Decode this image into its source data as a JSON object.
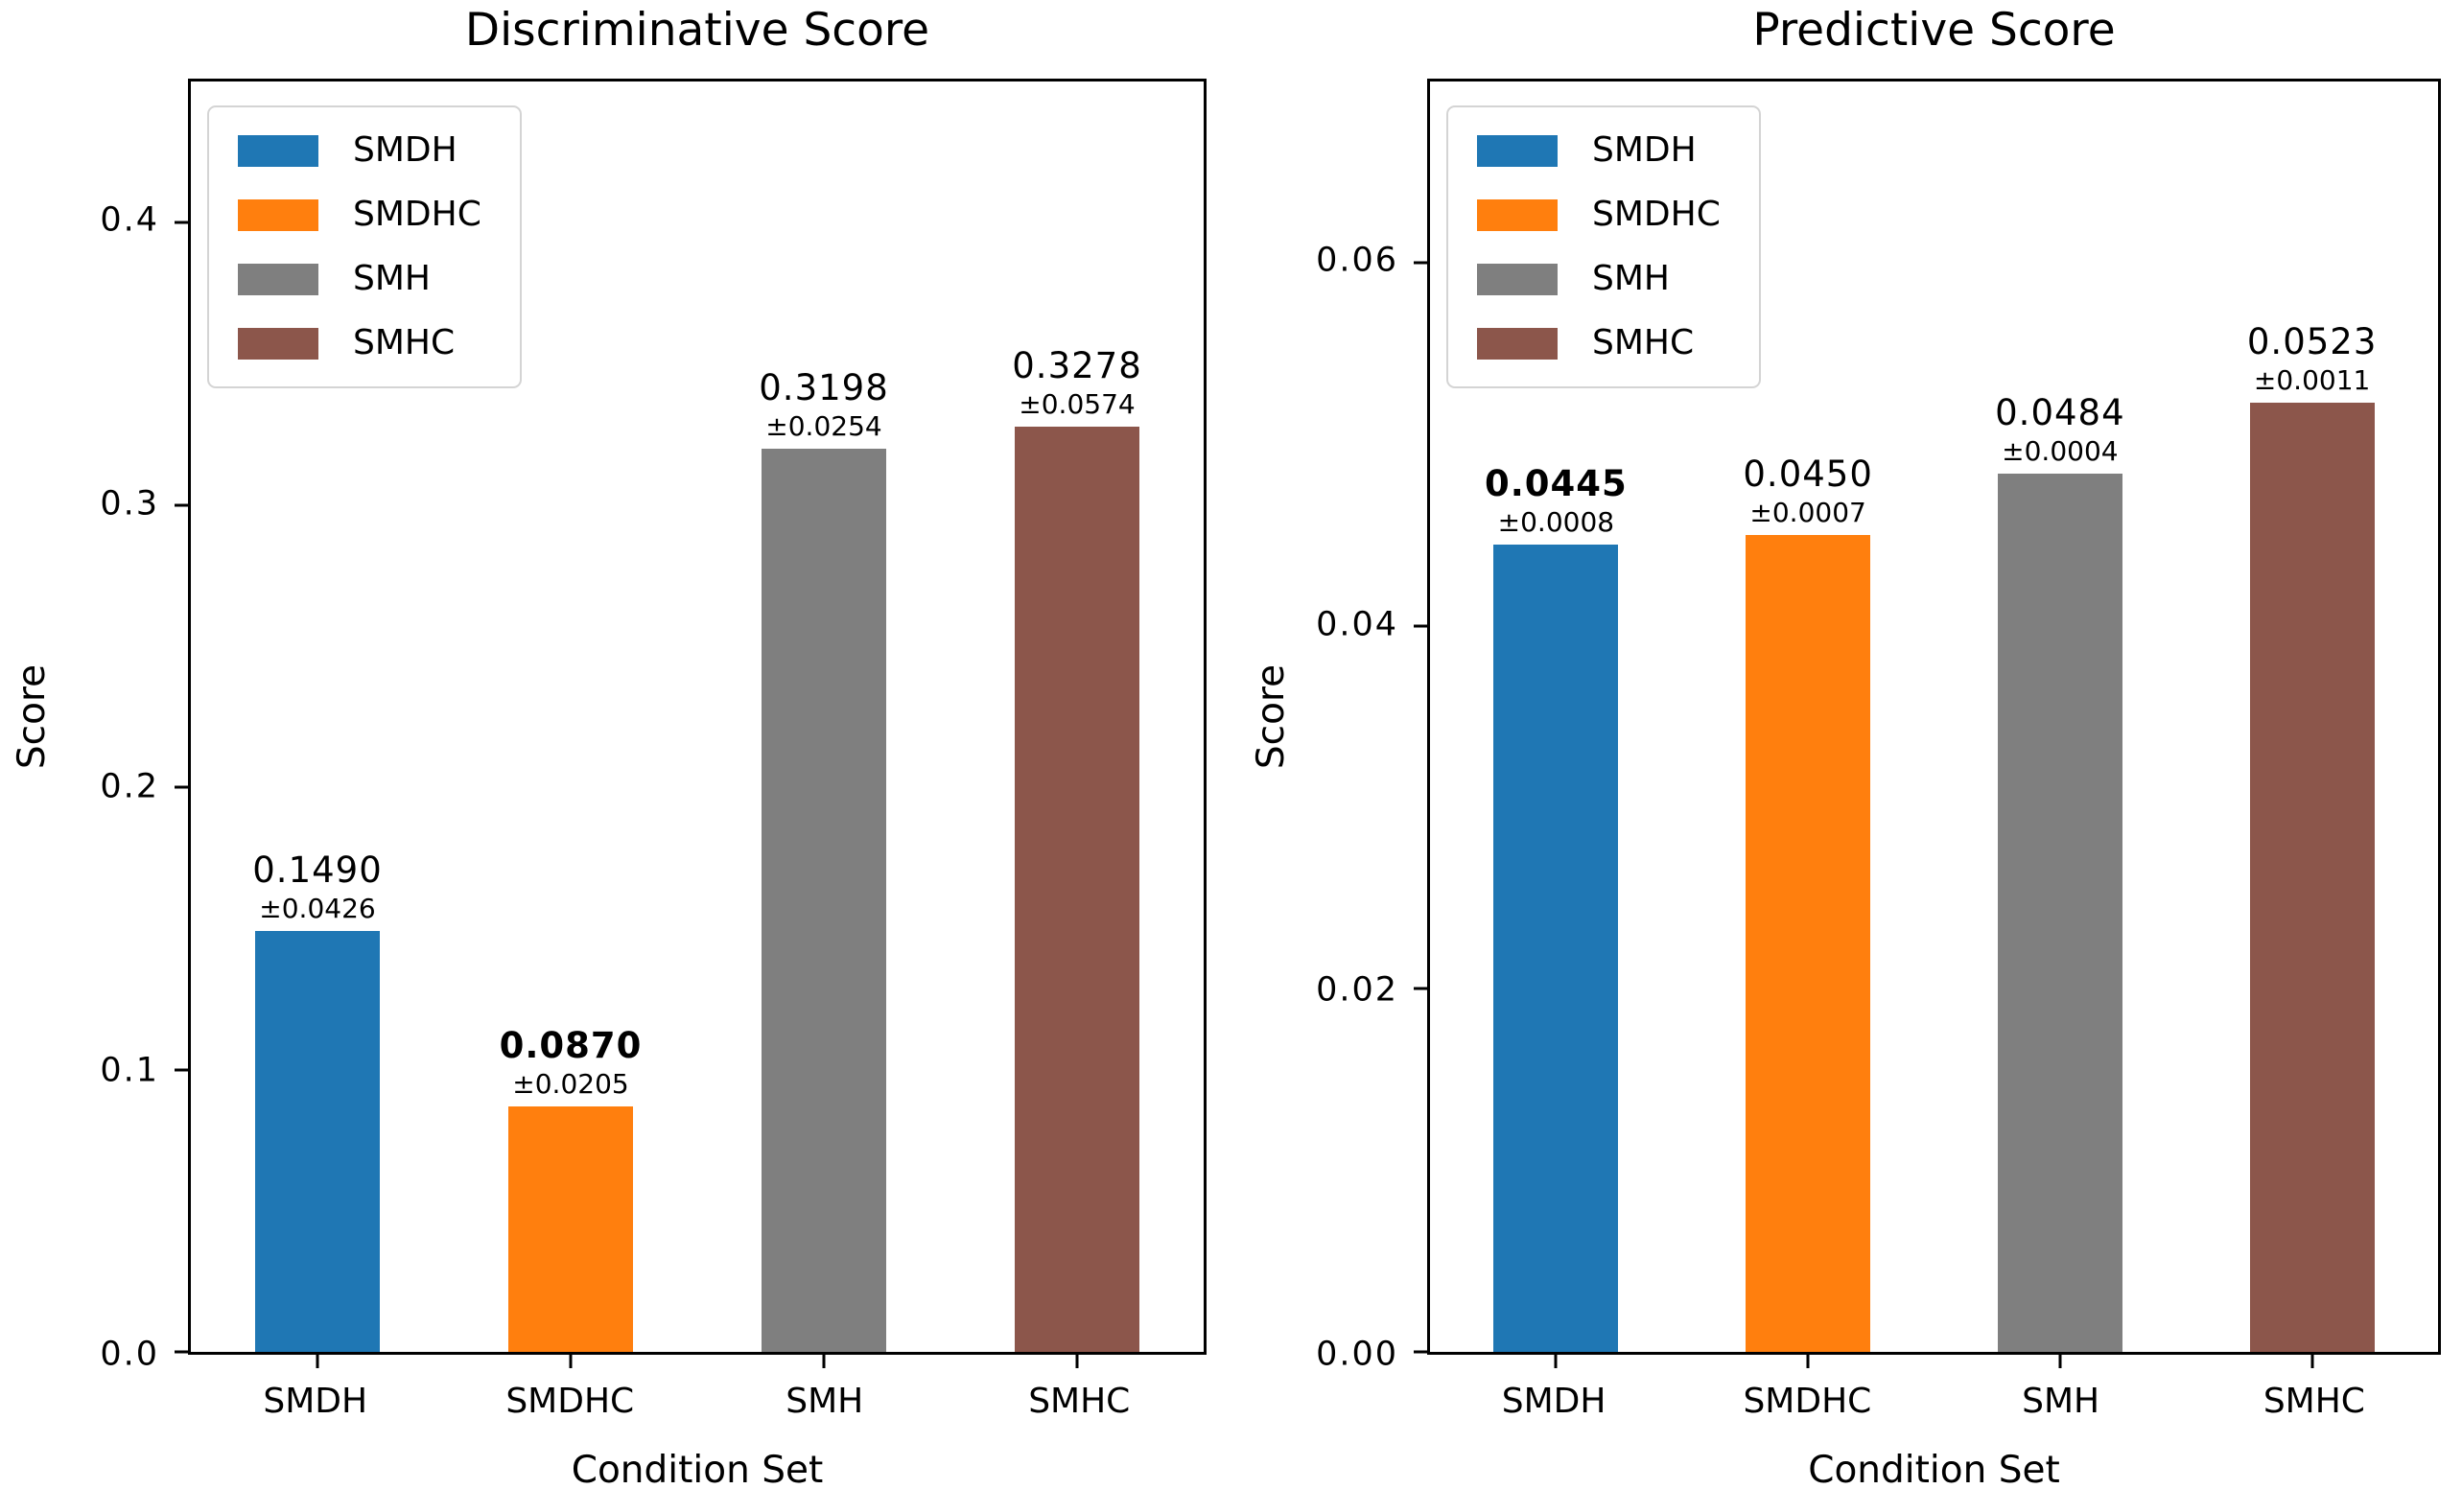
{
  "figure_background": "#ffffff",
  "text_color": "#000000",
  "axis_color": "#000000",
  "chart_data": [
    {
      "type": "bar",
      "title": "Discriminative Score",
      "xlabel": "Condition Set",
      "ylabel": "Score",
      "categories": [
        "SMDH",
        "SMDHC",
        "SMH",
        "SMHC"
      ],
      "values": [
        0.149,
        0.087,
        0.3198,
        0.3278
      ],
      "errors": [
        0.0426,
        0.0205,
        0.0254,
        0.0574
      ],
      "value_labels": [
        "0.1490",
        "0.0870",
        "0.3198",
        "0.3278"
      ],
      "error_labels": [
        "±0.0426",
        "±0.0205",
        "±0.0254",
        "±0.0574"
      ],
      "bold_value_index": 1,
      "bar_colors": [
        "#1f77b4",
        "#ff7f0e",
        "#7f7f7f",
        "#8c564b"
      ],
      "legend": [
        "SMDH",
        "SMDHC",
        "SMH",
        "SMHC"
      ],
      "legend_position": "upper-left",
      "grid": false,
      "ylim": [
        0,
        0.45
      ],
      "ytick_values": [
        0.0,
        0.1,
        0.2,
        0.3,
        0.4
      ],
      "ytick_labels": [
        "0.0",
        "0.1",
        "0.2",
        "0.3",
        "0.4"
      ]
    },
    {
      "type": "bar",
      "title": "Predictive Score",
      "xlabel": "Condition Set",
      "ylabel": "Score",
      "categories": [
        "SMDH",
        "SMDHC",
        "SMH",
        "SMHC"
      ],
      "values": [
        0.0445,
        0.045,
        0.0484,
        0.0523
      ],
      "errors": [
        0.0008,
        0.0007,
        0.0004,
        0.0011
      ],
      "value_labels": [
        "0.0445",
        "0.0450",
        "0.0484",
        "0.0523"
      ],
      "error_labels": [
        "±0.0008",
        "±0.0007",
        "±0.0004",
        "±0.0011"
      ],
      "bold_value_index": 0,
      "bar_colors": [
        "#1f77b4",
        "#ff7f0e",
        "#7f7f7f",
        "#8c564b"
      ],
      "legend": [
        "SMDH",
        "SMDHC",
        "SMH",
        "SMHC"
      ],
      "legend_position": "upper-left",
      "grid": false,
      "ylim": [
        0,
        0.07
      ],
      "ytick_values": [
        0.0,
        0.02,
        0.04,
        0.06
      ],
      "ytick_labels": [
        "0.00",
        "0.02",
        "0.04",
        "0.06"
      ]
    }
  ]
}
